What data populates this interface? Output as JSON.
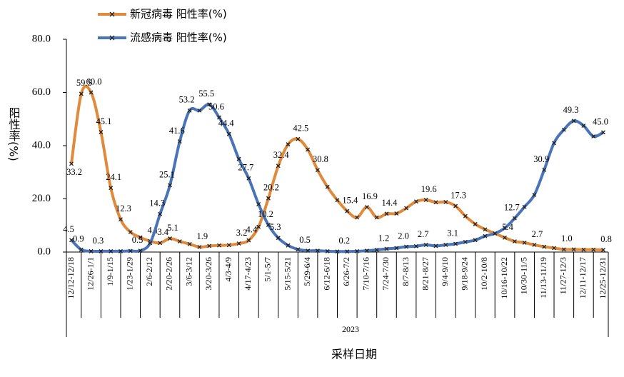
{
  "chart_data": {
    "type": "line",
    "x_label": "采样日期",
    "year_label": "2023",
    "y_label": "阳性率(%)",
    "categories": [
      "12/12-12/18",
      null,
      "12/26-1/1",
      null,
      "1/9-1/15",
      null,
      "1/23-1/29",
      null,
      "2/6-2/12",
      null,
      "2/20-2/26",
      null,
      "3/6-3/12",
      null,
      "3/20-3/26",
      null,
      "4/3-4/9",
      null,
      "4/17-4/23",
      null,
      "5/1-5/7",
      null,
      "5/15-5/21",
      null,
      "5/29-6/4",
      null,
      "6/12-6/18",
      null,
      "6/26-7/2",
      null,
      "7/10-7/16",
      null,
      "7/24-7/30",
      null,
      "8/7-8/13",
      null,
      "8/21-8/27",
      null,
      "9/4-9/10",
      null,
      "9/18-9/24",
      null,
      "10/2-10/8",
      null,
      "10/16-10/22",
      null,
      "10/30-11/5",
      null,
      "11/13-11/19",
      null,
      "11/27-12/3",
      null,
      "12/11-12/17",
      null,
      "12/25-12/31"
    ],
    "series": [
      {
        "name": "新冠病毒  阳性率(%)",
        "color": "#e08a3c",
        "values": [
          33.2,
          59.5,
          60.0,
          45.1,
          24.1,
          12.3,
          7.5,
          5.5,
          4.1,
          3.4,
          5.1,
          4.0,
          3.0,
          1.9,
          2.3,
          2.5,
          2.6,
          3.2,
          4.4,
          9.5,
          20.2,
          32.4,
          40.5,
          42.5,
          38.5,
          30.8,
          24.5,
          19.5,
          15.4,
          13.0,
          16.9,
          13.0,
          14.4,
          14.5,
          16.5,
          19.0,
          19.6,
          18.7,
          18.8,
          17.3,
          13.5,
          10.5,
          8.5,
          7.0,
          5.4,
          4.0,
          3.5,
          2.7,
          2.0,
          1.5,
          1.0,
          1.0,
          0.9,
          0.9,
          0.8
        ],
        "value_labels": [
          "33.2",
          "59.5",
          "60.0",
          "45.1",
          "24.1",
          "12.3",
          null,
          null,
          "4.1",
          "3.4",
          "5.1",
          null,
          null,
          "1.9",
          null,
          null,
          null,
          "3.2",
          "4.4",
          null,
          "20.2",
          "32.4",
          null,
          "42.5",
          null,
          "30.8",
          null,
          null,
          "15.4",
          null,
          "16.9",
          null,
          "14.4",
          null,
          null,
          null,
          "19.6",
          null,
          null,
          "17.3",
          null,
          null,
          null,
          null,
          "5.4",
          null,
          null,
          "2.7",
          null,
          null,
          "1.0",
          null,
          null,
          null,
          "0.8"
        ]
      },
      {
        "name": "流感病毒  阳性率(%)",
        "color": "#4a74b8",
        "values": [
          4.5,
          0.9,
          0.3,
          0.3,
          0.3,
          0.3,
          0.4,
          0.5,
          3.4,
          14.3,
          25.1,
          41.6,
          53.2,
          53.2,
          55.5,
          50.6,
          44.4,
          35.0,
          27.7,
          18.0,
          10.2,
          5.3,
          2.5,
          1.0,
          0.5,
          0.5,
          0.3,
          0.2,
          0.2,
          0.3,
          0.5,
          0.8,
          1.2,
          1.5,
          2.0,
          2.2,
          2.7,
          2.3,
          2.7,
          3.1,
          3.8,
          4.5,
          6.0,
          7.0,
          9.0,
          12.7,
          17.0,
          21.5,
          30.9,
          41.0,
          46.0,
          49.3,
          47.5,
          43.5,
          45.0
        ],
        "value_labels": [
          "4.5",
          "0.9",
          null,
          "0.3",
          null,
          null,
          null,
          "0.5",
          null,
          "14.3",
          "25.1",
          "41.6",
          "53.2",
          null,
          "55.5",
          "50.6",
          "44.4",
          null,
          "27.7",
          null,
          "10.2",
          "5.3",
          null,
          null,
          "0.5",
          null,
          null,
          null,
          "0.2",
          null,
          null,
          null,
          "1.2",
          null,
          "2.0",
          null,
          "2.7",
          null,
          null,
          "3.1",
          null,
          null,
          null,
          null,
          null,
          "12.7",
          null,
          null,
          "30.9",
          null,
          null,
          "49.3",
          null,
          null,
          "45.0"
        ]
      }
    ],
    "ylim": [
      0,
      80
    ],
    "yticks": [
      {
        "value": 0,
        "label": "0.0"
      },
      {
        "value": 20,
        "label": "20.0"
      },
      {
        "value": 40,
        "label": "40.0"
      },
      {
        "value": 60,
        "label": "60.0"
      },
      {
        "value": 80,
        "label": "80.0"
      }
    ]
  }
}
